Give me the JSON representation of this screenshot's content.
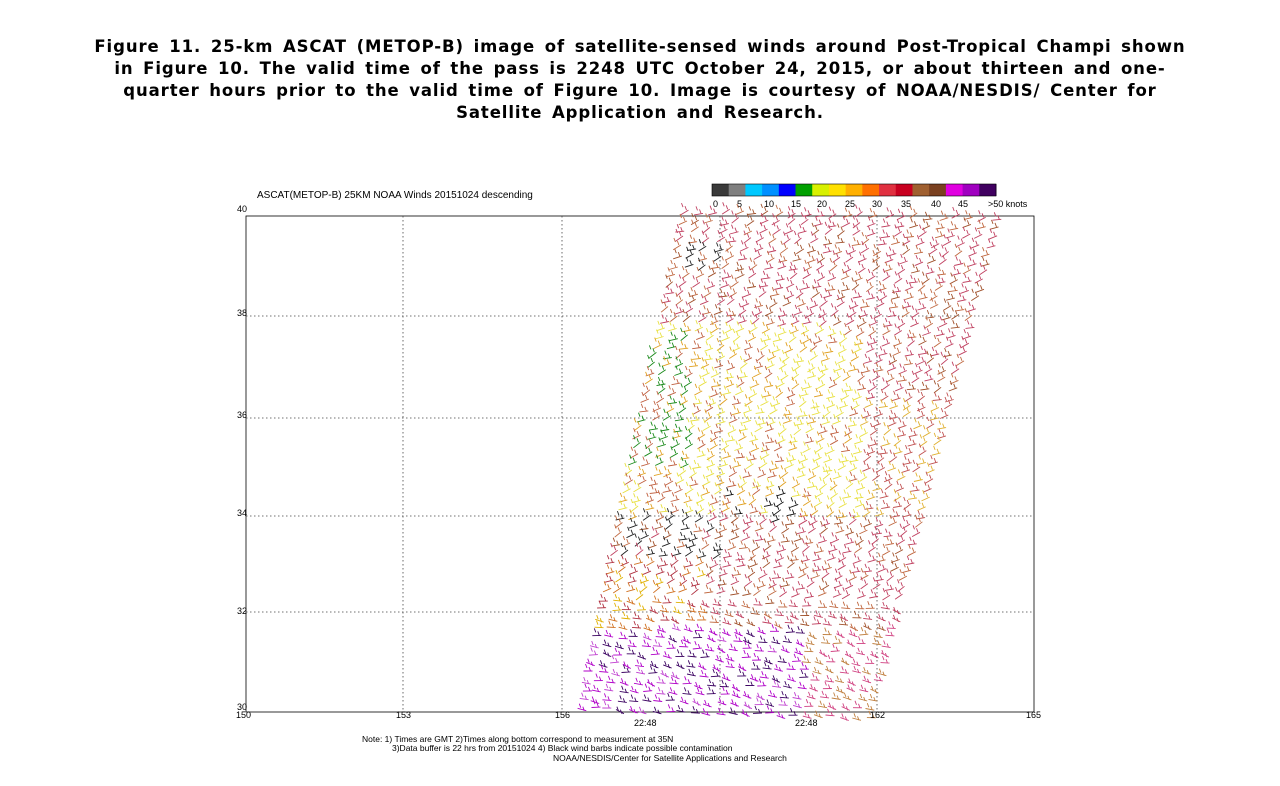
{
  "caption": "Figure 11.  25-km ASCAT (METOP-B) image of satellite-sensed winds around Post-Tropical Champi shown in Figure 10.  The valid time of the pass is 2248 UTC October 24, 2015, or about thirteen and one-quarter hours prior to the valid time of Figure 10.  Image is courtesy of NOAA/NESDIS/ Center for Satellite Application and Research.",
  "plot": {
    "title": "ASCAT(METOP-B) 25KM NOAA Winds 20151024 descending",
    "legend": {
      "labels": [
        "0",
        "5",
        "10",
        "15",
        "20",
        "25",
        "30",
        "35",
        "40",
        "45",
        ">50 knots"
      ],
      "colors": [
        "#3a3a3a",
        "#7f7f7f",
        "#00c8ff",
        "#0090ff",
        "#0000ff",
        "#00a000",
        "#d8f000",
        "#ffe000",
        "#ffb000",
        "#ff7000",
        "#e03040",
        "#c80020",
        "#a06030",
        "#7a4020",
        "#e000e0",
        "#a000c0",
        "#400060"
      ]
    },
    "y_ticks": [
      "40",
      "38",
      "36",
      "34",
      "32",
      "30"
    ],
    "x_ticks": [
      "150",
      "153",
      "156",
      "162",
      "165"
    ],
    "time_labels": [
      "22:48",
      "22:48"
    ],
    "notes": [
      "Note: 1) Times are GMT 2)Times along bottom correspond to measurement at 35N",
      "3)Data buffer is 22 hrs from 20151024 4) Black wind barbs indicate possible contamination",
      "NOAA/NESDIS/Center for Satellite Applications and Research"
    ]
  }
}
